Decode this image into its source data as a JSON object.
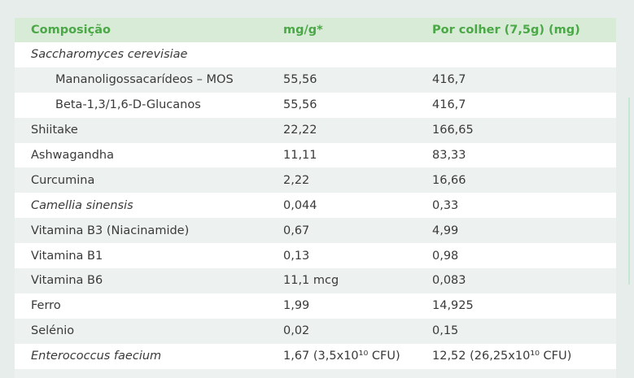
{
  "table": {
    "header": [
      "Composição",
      "mg/g*",
      "Por colher (7,5g) (mg)"
    ],
    "rows": [
      [
        "Saccharomyces cerevisiae"
      ],
      [
        "Mananoligossacarídeos – MOS",
        "55,56",
        "416,7"
      ],
      [
        "Beta-1,3/1,6-D-Glucanos",
        "55,56",
        "416,7"
      ],
      [
        "Shiitake",
        "22,22",
        "166,65"
      ],
      [
        "Ashwagandha",
        "11,11",
        "83,33"
      ],
      [
        "Curcumina",
        "2,22",
        "16,66"
      ],
      [
        "Camellia sinensis",
        "0,044",
        "0,33"
      ],
      [
        "Vitamina B3 (Niacinamide)",
        "0,67",
        "4,99"
      ],
      [
        "Vitamina B1",
        "0,13",
        "0,98"
      ],
      [
        "Vitamina B6",
        "11,1 mcg",
        "0,083"
      ],
      [
        "Ferro",
        "1,99",
        "14,925"
      ],
      [
        "Selénio",
        "0,02",
        "0,15"
      ],
      [
        "Enterococcus faecium",
        "1,67 (3,5x10¹⁰ CFU)",
        "12,52 (26,25x10¹⁰ CFU)"
      ]
    ]
  }
}
